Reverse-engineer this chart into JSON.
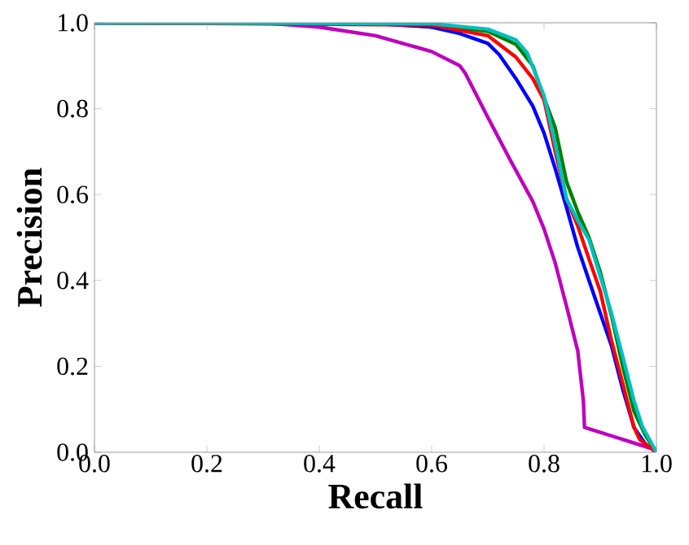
{
  "chart_data": {
    "type": "line",
    "xlabel": "Recall",
    "ylabel": "Precision",
    "xlim": [
      0.0,
      1.0
    ],
    "ylim": [
      0.0,
      1.0
    ],
    "xticks": [
      {
        "value": 0,
        "label": "0.0"
      },
      0.2,
      0.4,
      0.6,
      0.8,
      {
        "value": 1,
        "label": "1.0"
      }
    ],
    "yticks": [
      {
        "value": 0,
        "label": "0.0"
      },
      0.2,
      0.4,
      0.6,
      0.8,
      {
        "value": 1,
        "label": "1.0"
      }
    ],
    "grid": false,
    "marker": "none",
    "line_style": "solid",
    "series": [
      {
        "color": "#bf00bf",
        "x": [
          0,
          0.3,
          0.4,
          0.5,
          0.6,
          0.65,
          0.66,
          0.7,
          0.74,
          0.78,
          0.8,
          0.82,
          0.84,
          0.86,
          0.87,
          0.872,
          1.0
        ],
        "values": [
          1,
          1,
          0.99,
          0.97,
          0.933,
          0.9,
          0.882,
          0.78,
          0.68,
          0.584,
          0.52,
          0.44,
          0.34,
          0.236,
          0.12,
          0.058,
          0.005
        ]
      },
      {
        "color": "#0000ff",
        "x": [
          0,
          0.5,
          0.6,
          0.65,
          0.7,
          0.72,
          0.75,
          0.78,
          0.8,
          0.82,
          0.84,
          0.86,
          0.88,
          0.9,
          0.92,
          0.94,
          0.96,
          0.98,
          1.0
        ],
        "values": [
          1,
          0.998,
          0.99,
          0.975,
          0.952,
          0.926,
          0.87,
          0.806,
          0.743,
          0.66,
          0.57,
          0.477,
          0.4,
          0.324,
          0.248,
          0.147,
          0.058,
          0.02,
          0.0
        ]
      },
      {
        "color": "#008000",
        "x": [
          0,
          0.6,
          0.7,
          0.75,
          0.78,
          0.8,
          0.82,
          0.84,
          0.86,
          0.88,
          0.9,
          0.92,
          0.94,
          0.96,
          0.98,
          1.0
        ],
        "values": [
          1,
          0.997,
          0.98,
          0.95,
          0.9,
          0.825,
          0.755,
          0.63,
          0.56,
          0.5,
          0.42,
          0.318,
          0.2,
          0.096,
          0.04,
          0.0
        ]
      },
      {
        "color": "#ff0000",
        "x": [
          0,
          0.6,
          0.7,
          0.75,
          0.78,
          0.8,
          0.82,
          0.84,
          0.86,
          0.88,
          0.9,
          0.92,
          0.94,
          0.96,
          0.97,
          1.0
        ],
        "values": [
          1,
          0.995,
          0.97,
          0.92,
          0.87,
          0.82,
          0.7,
          0.59,
          0.527,
          0.45,
          0.375,
          0.26,
          0.16,
          0.058,
          0.03,
          0.0
        ]
      },
      {
        "color": "#00bfbf",
        "x": [
          0,
          0.6,
          0.7,
          0.75,
          0.77,
          0.8,
          0.82,
          0.84,
          0.86,
          0.88,
          0.9,
          0.92,
          0.94,
          0.96,
          0.975,
          1.0
        ],
        "values": [
          1,
          0.998,
          0.985,
          0.96,
          0.93,
          0.83,
          0.717,
          0.59,
          0.54,
          0.495,
          0.41,
          0.324,
          0.223,
          0.12,
          0.06,
          0.0
        ]
      }
    ]
  }
}
